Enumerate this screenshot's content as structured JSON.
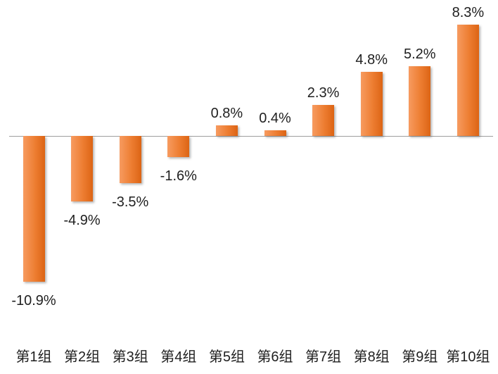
{
  "chart_data": {
    "type": "bar",
    "categories": [
      "第1组",
      "第2组",
      "第3组",
      "第4组",
      "第5组",
      "第6组",
      "第7组",
      "第8组",
      "第9组",
      "第10组"
    ],
    "values": [
      -10.9,
      -4.9,
      -3.5,
      -1.6,
      0.8,
      0.4,
      2.3,
      4.8,
      5.2,
      8.3
    ],
    "value_labels": [
      "-10.9%",
      "-4.9%",
      "-3.5%",
      "-1.6%",
      "0.8%",
      "0.4%",
      "2.3%",
      "4.8%",
      "5.2%",
      "8.3%"
    ],
    "title": "",
    "xlabel": "",
    "ylabel": "",
    "ylim": [
      -10.9,
      8.3
    ],
    "grid": false,
    "legend": false,
    "colors": {
      "bar_gradient_light": "#F79B60",
      "bar_main": "#ED7D31",
      "bar_gradient_dark": "#DC6414",
      "axis_line": "#9D9D9D",
      "text": "#1F1F1F",
      "background": "#FFFFFF"
    }
  }
}
